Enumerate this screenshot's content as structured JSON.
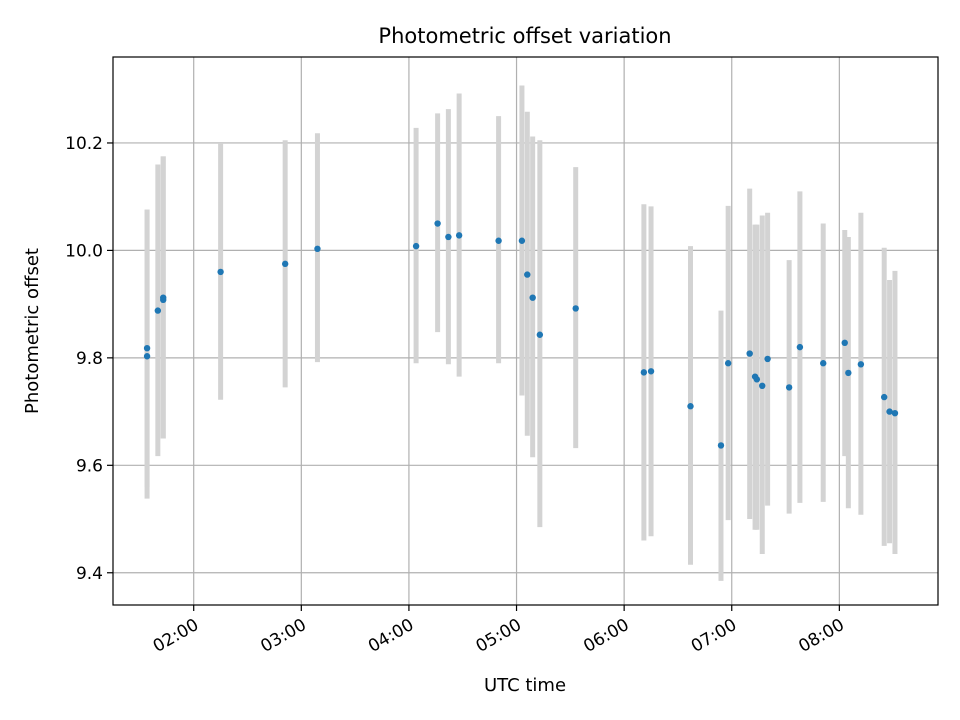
{
  "chart_data": {
    "type": "scatter",
    "title": "Photometric offset variation",
    "xlabel": "UTC time",
    "ylabel": "Photometric offset",
    "xlim": [
      "01:15",
      "08:55"
    ],
    "ylim": [
      9.34,
      10.36
    ],
    "x_ticks": [
      "02:00",
      "03:00",
      "04:00",
      "05:00",
      "06:00",
      "07:00",
      "08:00"
    ],
    "y_ticks": [
      "9.4",
      "9.6",
      "9.8",
      "10.0",
      "10.2"
    ],
    "grid": true,
    "colors": {
      "point": "#1f77b4",
      "errorbar": "#d3d3d3",
      "grid": "#b0b0b0"
    },
    "points": [
      {
        "t": "01:34",
        "y": 9.803,
        "ylo": 9.538,
        "yhi": 10.076
      },
      {
        "t": "01:34",
        "y": 9.818,
        "ylo": 9.56,
        "yhi": 10.076
      },
      {
        "t": "01:40",
        "y": 9.888,
        "ylo": 9.617,
        "yhi": 10.16
      },
      {
        "t": "01:43",
        "y": 9.908,
        "ylo": 9.65,
        "yhi": 10.175
      },
      {
        "t": "01:43",
        "y": 9.912,
        "ylo": 9.65,
        "yhi": 10.175
      },
      {
        "t": "02:15",
        "y": 9.96,
        "ylo": 9.722,
        "yhi": 10.2
      },
      {
        "t": "02:51",
        "y": 9.975,
        "ylo": 9.745,
        "yhi": 10.205
      },
      {
        "t": "03:09",
        "y": 10.003,
        "ylo": 9.792,
        "yhi": 10.218
      },
      {
        "t": "04:04",
        "y": 10.008,
        "ylo": 9.79,
        "yhi": 10.228
      },
      {
        "t": "04:16",
        "y": 10.05,
        "ylo": 9.848,
        "yhi": 10.255
      },
      {
        "t": "04:22",
        "y": 10.025,
        "ylo": 9.788,
        "yhi": 10.263
      },
      {
        "t": "04:28",
        "y": 10.028,
        "ylo": 9.765,
        "yhi": 10.292
      },
      {
        "t": "04:50",
        "y": 10.018,
        "ylo": 9.79,
        "yhi": 10.25
      },
      {
        "t": "05:03",
        "y": 10.018,
        "ylo": 9.73,
        "yhi": 10.307
      },
      {
        "t": "05:06",
        "y": 9.955,
        "ylo": 9.655,
        "yhi": 10.258
      },
      {
        "t": "05:09",
        "y": 9.912,
        "ylo": 9.615,
        "yhi": 10.212
      },
      {
        "t": "05:13",
        "y": 9.843,
        "ylo": 9.485,
        "yhi": 10.205
      },
      {
        "t": "05:33",
        "y": 9.892,
        "ylo": 9.632,
        "yhi": 10.155
      },
      {
        "t": "06:11",
        "y": 9.773,
        "ylo": 9.46,
        "yhi": 10.086
      },
      {
        "t": "06:15",
        "y": 9.775,
        "ylo": 9.468,
        "yhi": 10.082
      },
      {
        "t": "06:37",
        "y": 9.71,
        "ylo": 9.415,
        "yhi": 10.008
      },
      {
        "t": "06:54",
        "y": 9.637,
        "ylo": 9.385,
        "yhi": 9.888
      },
      {
        "t": "06:58",
        "y": 9.79,
        "ylo": 9.498,
        "yhi": 10.083
      },
      {
        "t": "07:10",
        "y": 9.808,
        "ylo": 9.5,
        "yhi": 10.115
      },
      {
        "t": "07:13",
        "y": 9.765,
        "ylo": 9.48,
        "yhi": 10.048
      },
      {
        "t": "07:14",
        "y": 9.76,
        "ylo": 9.48,
        "yhi": 10.048
      },
      {
        "t": "07:17",
        "y": 9.748,
        "ylo": 9.435,
        "yhi": 10.065
      },
      {
        "t": "07:20",
        "y": 9.798,
        "ylo": 9.525,
        "yhi": 10.07
      },
      {
        "t": "07:32",
        "y": 9.745,
        "ylo": 9.51,
        "yhi": 9.982
      },
      {
        "t": "07:38",
        "y": 9.82,
        "ylo": 9.53,
        "yhi": 10.11
      },
      {
        "t": "07:51",
        "y": 9.79,
        "ylo": 9.532,
        "yhi": 10.05
      },
      {
        "t": "08:03",
        "y": 9.828,
        "ylo": 9.617,
        "yhi": 10.038
      },
      {
        "t": "08:05",
        "y": 9.772,
        "ylo": 9.52,
        "yhi": 10.025
      },
      {
        "t": "08:12",
        "y": 9.788,
        "ylo": 9.508,
        "yhi": 10.07
      },
      {
        "t": "08:25",
        "y": 9.727,
        "ylo": 9.45,
        "yhi": 10.005
      },
      {
        "t": "08:28",
        "y": 9.7,
        "ylo": 9.455,
        "yhi": 9.945
      },
      {
        "t": "08:31",
        "y": 9.697,
        "ylo": 9.435,
        "yhi": 9.962
      }
    ]
  }
}
